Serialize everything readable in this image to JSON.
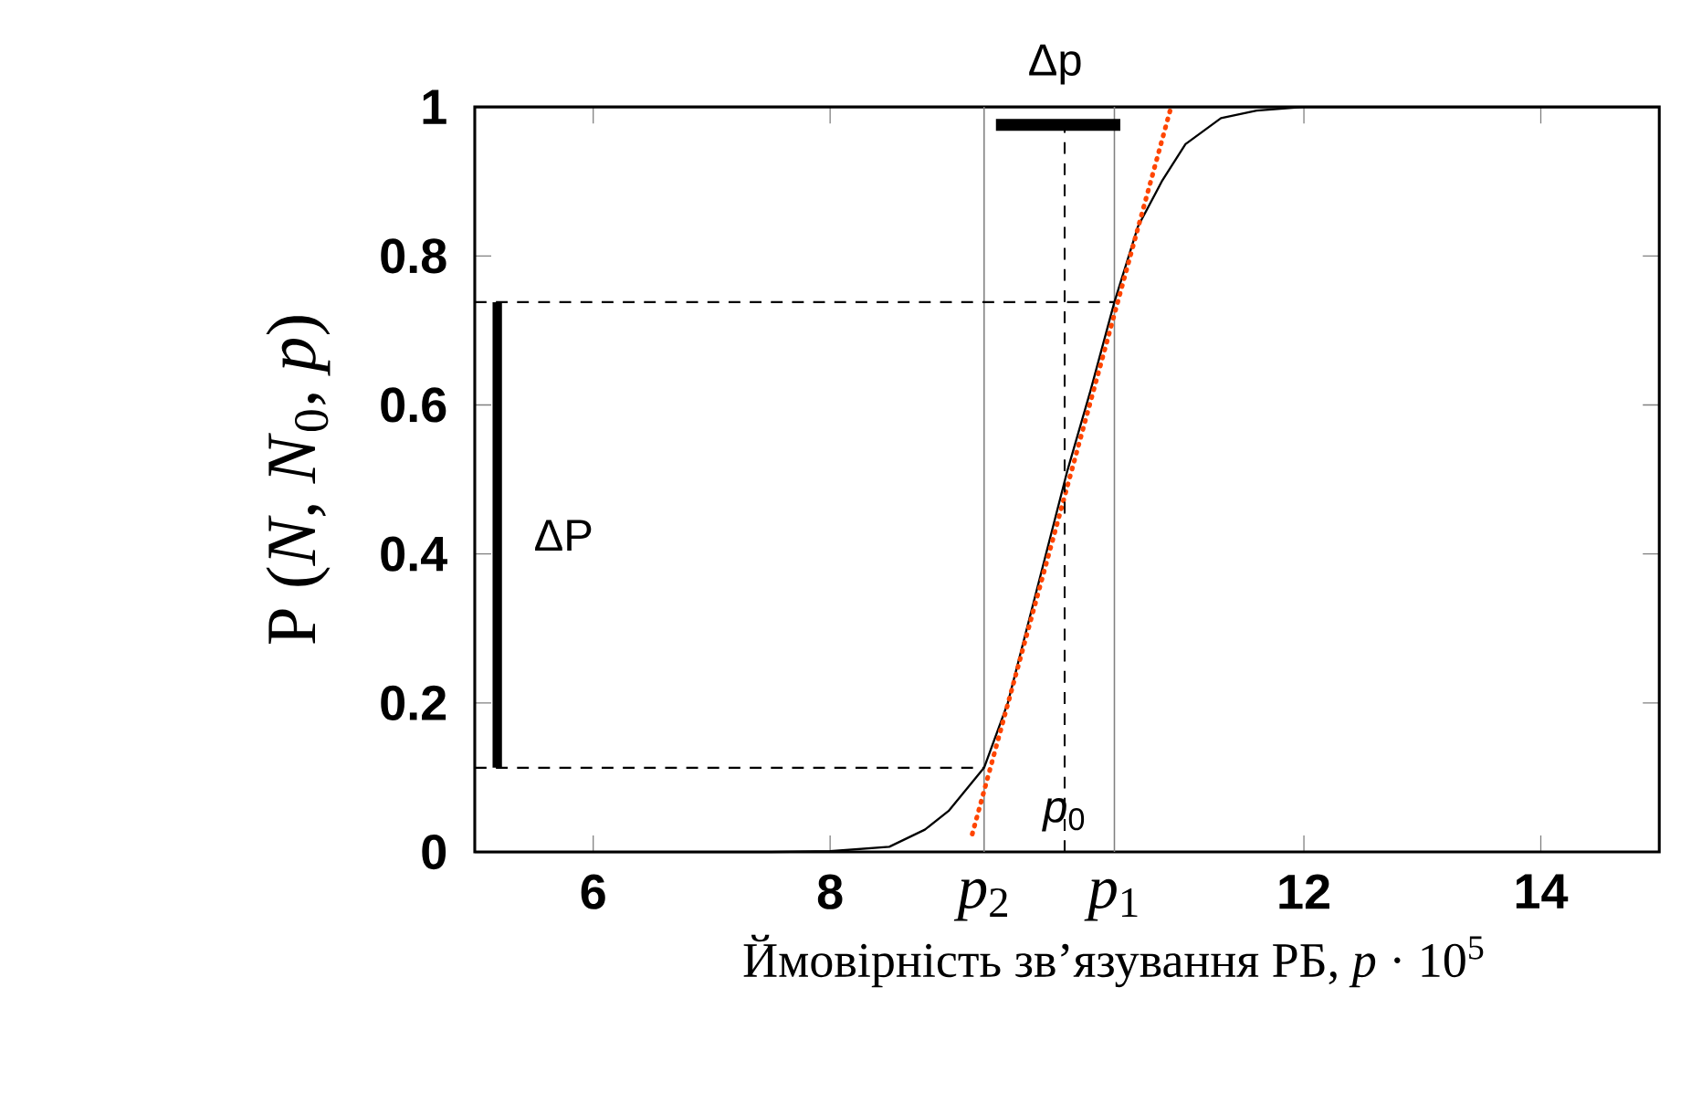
{
  "chart_data": {
    "type": "line",
    "xlabel": "Ймовірність зв’язування РБ, *p* · 10$^{5}$",
    "ylabel": "P (*N*, *N*$_{0}$, *p*)",
    "xlim": [
      5,
      15
    ],
    "ylim": [
      0,
      1
    ],
    "xticks": [
      6,
      8,
      12,
      14
    ],
    "yticks": [
      0,
      0.2,
      0.4,
      0.6,
      0.8,
      1
    ],
    "marker": "none",
    "series": [
      {
        "color": "#000000",
        "line_style": "solid",
        "x": [
          5,
          7.5,
          8.0,
          8.5,
          8.8,
          9.0,
          9.3,
          9.5,
          10.0,
          10.2,
          10.4,
          10.6,
          10.8,
          11.0,
          11.3,
          11.6,
          12,
          15
        ],
        "values": [
          0,
          0,
          0.001,
          0.007,
          0.03,
          0.055,
          0.113,
          0.2,
          0.51,
          0.62,
          0.738,
          0.84,
          0.9,
          0.95,
          0.985,
          0.995,
          1,
          1
        ]
      },
      {
        "color": "#ff4500",
        "line_style": "dotted",
        "x": [
          9.2,
          10.87
        ],
        "values": [
          0.024,
          0.995
        ]
      },
      {
        "color": "#000000",
        "line_style": "dashed",
        "x": [
          5,
          9.3
        ],
        "values": [
          0.113,
          0.113
        ]
      },
      {
        "color": "#000000",
        "line_style": "dashed",
        "x": [
          5,
          10.4
        ],
        "values": [
          0.738,
          0.738
        ]
      },
      {
        "color": "#000000",
        "line_style": "dashed",
        "x": [
          9.98,
          9.98
        ],
        "values": [
          0,
          0.976
        ]
      },
      {
        "color": "#000000",
        "line_style": "solid",
        "x": [
          5.19,
          5.19
        ],
        "values": [
          0.113,
          0.738
        ]
      },
      {
        "color": "#000000",
        "line_style": "solid",
        "x": [
          9.4,
          10.45
        ],
        "values": [
          0.976,
          0.976
        ]
      }
    ],
    "ref_lines": [
      {
        "axis": "x",
        "value": 9.3,
        "color": "#808080",
        "label": "*p*$_{2}$"
      },
      {
        "axis": "x",
        "value": 10.4,
        "color": "#808080",
        "label": "*p*$_{1}$"
      }
    ],
    "annotations": [
      {
        "text": "ΔP",
        "x": 5.19,
        "y": 0.425
      },
      "Δp",
      {
        "text": "*p*$_{0}$",
        "x": 9.98,
        "y": 0.05
      }
    ]
  }
}
